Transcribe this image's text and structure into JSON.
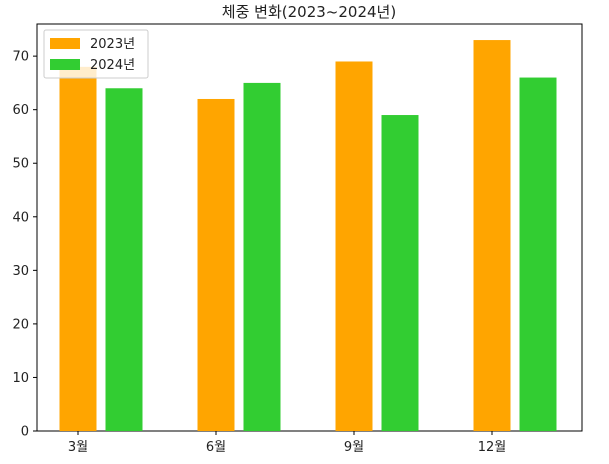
{
  "chart_data": {
    "type": "bar",
    "title": "체중 변화(2023~2024년)",
    "categories": [
      "3월",
      "6월",
      "9월",
      "12월"
    ],
    "series": [
      {
        "name": "2023년",
        "values": [
          68,
          62,
          69,
          73
        ],
        "color": "#FFA500"
      },
      {
        "name": "2024년",
        "values": [
          64,
          65,
          59,
          66
        ],
        "color": "#32CD32"
      }
    ],
    "ylim": [
      0,
      76
    ],
    "yticks": [
      0,
      10,
      20,
      30,
      40,
      50,
      60,
      70
    ],
    "grid": false,
    "legend_position": "top-left",
    "xlabel": "",
    "ylabel": ""
  }
}
